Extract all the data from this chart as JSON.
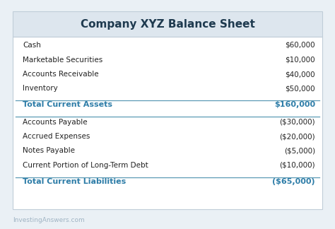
{
  "title": "Company XYZ Balance Sheet",
  "title_color": "#1e3a4f",
  "title_bg_color": "#dde6ee",
  "table_bg_color": "#ffffff",
  "border_color": "#c0cdd8",
  "separator_color": "#5b9ab5",
  "normal_rows": [
    [
      "Cash",
      "$60,000"
    ],
    [
      "Marketable Securities",
      "$10,000"
    ],
    [
      "Accounts Receivable",
      "$40,000"
    ],
    [
      "Inventory",
      "$50,000"
    ]
  ],
  "total_assets_row": [
    "Total Current Assets",
    "$160,000"
  ],
  "total_assets_color": "#2e7da8",
  "liability_rows": [
    [
      "Accounts Payable",
      "($30,000)"
    ],
    [
      "Accrued Expenses",
      "($20,000)"
    ],
    [
      "Notes Payable",
      "($5,000)"
    ],
    [
      "Current Portion of Long-Term Debt",
      "($10,000)"
    ]
  ],
  "total_liabilities_row": [
    "Total Current Liabilities",
    "($65,000)"
  ],
  "total_liabilities_color": "#2e7da8",
  "normal_text_color": "#222222",
  "footer_text": "InvestingAnswers.com",
  "footer_color": "#a0b4c4",
  "outer_bg_color": "#eaf0f5"
}
